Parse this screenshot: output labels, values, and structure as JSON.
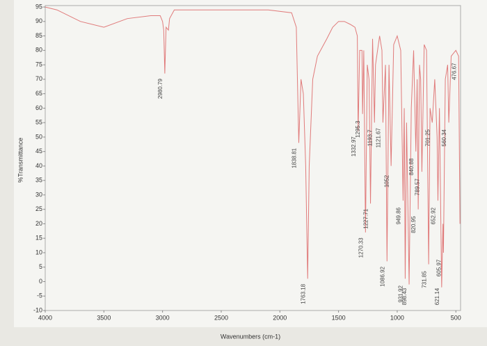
{
  "chart_data": {
    "type": "line",
    "x_label": "Wavenumbers (cm-1)",
    "y_label": "%Transmittance",
    "xlim": [
      4000,
      460
    ],
    "ylim": [
      -10,
      95.5
    ],
    "xticks": [
      4000,
      3500,
      3000,
      2500,
      2000,
      1500,
      1000,
      500
    ],
    "yticks": [
      95,
      90,
      85,
      80,
      75,
      70,
      65,
      60,
      55,
      50,
      45,
      40,
      35,
      30,
      25,
      20,
      15,
      10,
      5,
      0,
      -5,
      -10
    ],
    "color": "#e07a7a",
    "x": [
      4000,
      3900,
      3700,
      3500,
      3300,
      3100,
      3020,
      3000,
      2990,
      2980.79,
      2970,
      2950,
      2940,
      2900,
      2500,
      2100,
      1900,
      1860,
      1838.81,
      1820,
      1800,
      1780,
      1763.18,
      1750,
      1720,
      1680,
      1600,
      1550,
      1500,
      1450,
      1400,
      1360,
      1340,
      1332.97,
      1320,
      1300,
      1295.3,
      1285,
      1270.33,
      1255,
      1240,
      1227.71,
      1210,
      1193.7,
      1185,
      1150,
      1130,
      1121.67,
      1100,
      1086.92,
      1070,
      1052.0,
      1030,
      1000,
      970,
      949.86,
      940,
      931.92,
      920,
      898.43,
      880,
      860,
      840.88,
      830,
      820.95,
      810,
      800,
      789.57,
      770,
      750,
      731.85,
      720,
      701.25,
      680,
      660,
      652.92,
      640,
      621.14,
      610,
      605.97,
      590,
      570,
      560.34,
      540,
      500,
      476.67,
      465
    ],
    "values": [
      95,
      94,
      90,
      88,
      91,
      92,
      92,
      90,
      87,
      72,
      88,
      87,
      91,
      94,
      94,
      94,
      93,
      88,
      48,
      70,
      65,
      40,
      1,
      40,
      70,
      78,
      84,
      88,
      90,
      90,
      89,
      88,
      85,
      52,
      80,
      80,
      58,
      80,
      17,
      75,
      70,
      27,
      84,
      55,
      75,
      85,
      80,
      55,
      75,
      7,
      75,
      40,
      82,
      85,
      80,
      28,
      60,
      1,
      55,
      -1,
      60,
      80,
      45,
      70,
      25,
      75,
      70,
      38,
      82,
      80,
      6,
      60,
      55,
      70,
      50,
      28,
      60,
      -2,
      20,
      10,
      70,
      75,
      55,
      78,
      80,
      78,
      20
    ],
    "peak_labels": [
      2980.79,
      1838.81,
      1763.18,
      1332.97,
      1295.3,
      1270.33,
      1227.71,
      1193.7,
      1121.67,
      1086.92,
      1052.0,
      949.86,
      931.92,
      898.43,
      840.88,
      820.95,
      789.57,
      731.85,
      701.25,
      652.92,
      621.14,
      605.97,
      560.34,
      476.67
    ]
  }
}
